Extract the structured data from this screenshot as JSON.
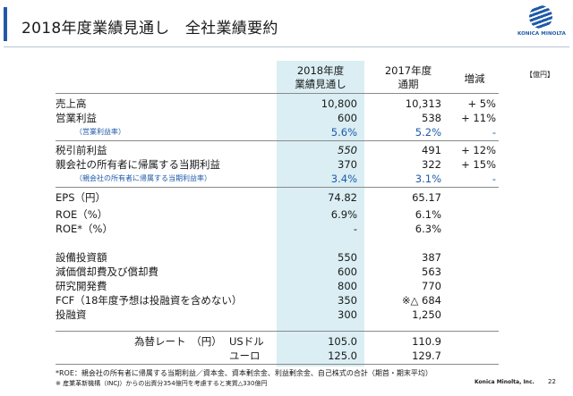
{
  "title": "2018年度業績見通し　全社業績要約",
  "logo": {
    "text": "KONICA MINOLTA",
    "color": "#1f5aa8"
  },
  "unit": "【億円】",
  "columns": {
    "a_line1": "2018年度",
    "a_line2": "業績見通し",
    "b_line1": "2017年度",
    "b_line2": "通期",
    "c": "増減"
  },
  "rows": [
    {
      "label": "売上高",
      "a": "10,800",
      "b": "10,313",
      "c": "+ 5%"
    },
    {
      "label": "営業利益",
      "a": "600",
      "b": "538",
      "c": "+ 11%"
    },
    {
      "label": "（営業利益率）",
      "a": "5.6%",
      "b": "5.2%",
      "c": "-"
    },
    {
      "label": "税引前利益",
      "a": "550",
      "b": "491",
      "c": "+ 12%"
    },
    {
      "label": "親会社の所有者に帰属する当期利益",
      "a": "370",
      "b": "322",
      "c": "+ 15%"
    },
    {
      "label": "（親会社の所有者に帰属する当期利益率）",
      "a": "3.4%",
      "b": "3.1%",
      "c": "-"
    },
    {
      "label": "EPS（円）",
      "a": "74.82",
      "b": "65.17",
      "c": ""
    },
    {
      "label": "ROE（%）",
      "a": "6.9%",
      "b": "6.1%",
      "c": ""
    },
    {
      "label": "ROE*（%）",
      "a": "-",
      "b": "6.3%",
      "c": ""
    },
    {
      "label": "設備投資額",
      "a": "550",
      "b": "387",
      "c": ""
    },
    {
      "label": "減価償却費及び償却費",
      "a": "600",
      "b": "563",
      "c": ""
    },
    {
      "label": "研究開発費",
      "a": "800",
      "b": "770",
      "c": ""
    },
    {
      "label": "FCF（18年度予想は投融資を含めない）",
      "a": "350",
      "b": "※△ 684",
      "c": ""
    },
    {
      "label": "投融資",
      "a": "300",
      "b": "1,250",
      "c": ""
    }
  ],
  "fx": {
    "label": "為替レート",
    "unit": "（円）",
    "usd_label": "USドル",
    "usd_a": "105.0",
    "usd_b": "110.9",
    "eur_label": "ユーロ",
    "eur_a": "125.0",
    "eur_b": "129.7"
  },
  "footnotes": [
    "*ROE：親会社の所有者に帰属する当期利益／資本金、資本剰余金、利益剰余金、自己株式の合計（期首・期末平均）",
    "※ 産業革新機構（INCJ）からの出資分354億円を考慮すると実質△330億円"
  ],
  "company": "Konica Minolta, Inc.",
  "page_number": "22"
}
